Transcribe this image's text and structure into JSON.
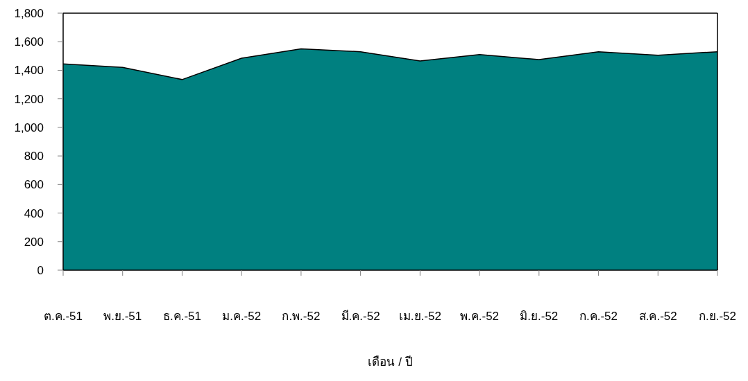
{
  "chart_data": {
    "type": "area",
    "xlabel": "เดือน / ปี",
    "categories": [
      "ต.ค.-51",
      "พ.ย.-51",
      "ธ.ค.-51",
      "ม.ค.-52",
      "ก.พ.-52",
      "มี.ค.-52",
      "เม.ย.-52",
      "พ.ค.-52",
      "มิ.ย.-52",
      "ก.ค.-52",
      "ส.ค.-52",
      "ก.ย.-52"
    ],
    "series": [
      {
        "color": "#008080",
        "values": [
          1445,
          1420,
          1335,
          1485,
          1550,
          1530,
          1465,
          1510,
          1475,
          1530,
          1505,
          1530
        ]
      }
    ],
    "ylim": [
      0,
      1800
    ],
    "yticks": [
      0,
      200,
      400,
      600,
      800,
      {
        "value": 1000,
        "label": "1,000"
      },
      {
        "value": 1200,
        "label": "1,200"
      },
      {
        "value": 1400,
        "label": "1,400"
      },
      {
        "value": 1600,
        "label": "1,600"
      },
      {
        "value": 1800,
        "label": "1,800"
      }
    ]
  }
}
